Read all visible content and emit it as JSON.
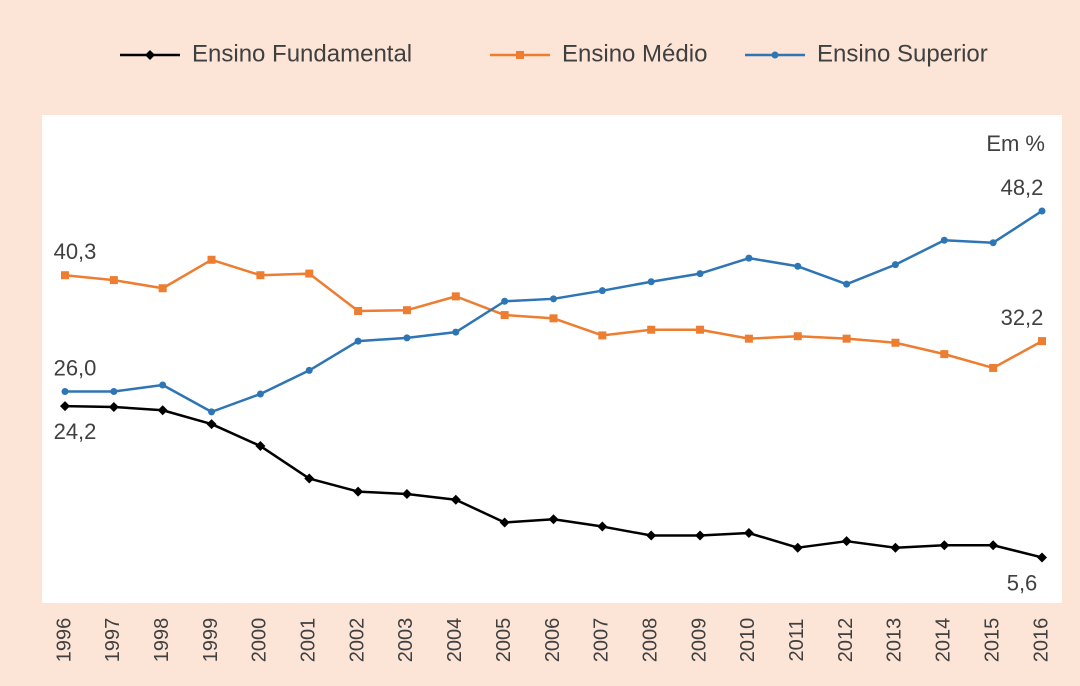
{
  "chart_data": {
    "type": "line",
    "annotation": "Em %",
    "categories": [
      "1996",
      "1997",
      "1998",
      "1999",
      "2000",
      "2001",
      "2002",
      "2003",
      "2004",
      "2005",
      "2006",
      "2007",
      "2008",
      "2009",
      "2010",
      "2011",
      "2012",
      "2013",
      "2014",
      "2015",
      "2016"
    ],
    "ylim": [
      0,
      60
    ],
    "series": [
      {
        "name": "Ensino Fundamental",
        "color": "#000000",
        "marker": "diamond",
        "values": [
          24.2,
          24.1,
          23.7,
          22.0,
          19.3,
          15.3,
          13.7,
          13.4,
          12.7,
          9.9,
          10.3,
          9.4,
          8.3,
          8.3,
          8.6,
          6.8,
          7.6,
          6.8,
          7.1,
          7.1,
          5.6
        ],
        "value_labels": [
          "24,2",
          null,
          null,
          null,
          null,
          null,
          null,
          null,
          null,
          null,
          null,
          null,
          null,
          null,
          null,
          null,
          null,
          null,
          null,
          null,
          "5,6"
        ]
      },
      {
        "name": "Ensino Médio",
        "color": "#ed7d31",
        "marker": "square",
        "values": [
          40.3,
          39.7,
          38.7,
          42.2,
          40.3,
          40.5,
          35.9,
          36.0,
          37.7,
          35.4,
          35.0,
          32.9,
          33.6,
          33.6,
          32.5,
          32.8,
          32.5,
          32.0,
          30.6,
          28.9,
          32.2
        ],
        "value_labels": [
          "40,3",
          null,
          null,
          null,
          null,
          null,
          null,
          null,
          null,
          null,
          null,
          null,
          null,
          null,
          null,
          null,
          null,
          null,
          null,
          null,
          "32,2"
        ]
      },
      {
        "name": "Ensino Superior",
        "color": "#2e75b6",
        "marker": "circle",
        "values": [
          26.0,
          26.0,
          26.8,
          23.5,
          25.7,
          28.6,
          32.2,
          32.6,
          33.3,
          37.1,
          37.4,
          38.4,
          39.5,
          40.5,
          42.4,
          41.4,
          39.2,
          41.6,
          44.6,
          44.3,
          48.2
        ],
        "value_labels": [
          "26,0",
          null,
          null,
          null,
          null,
          null,
          null,
          null,
          null,
          null,
          null,
          null,
          null,
          null,
          null,
          null,
          null,
          null,
          null,
          null,
          "48,2"
        ]
      }
    ]
  }
}
